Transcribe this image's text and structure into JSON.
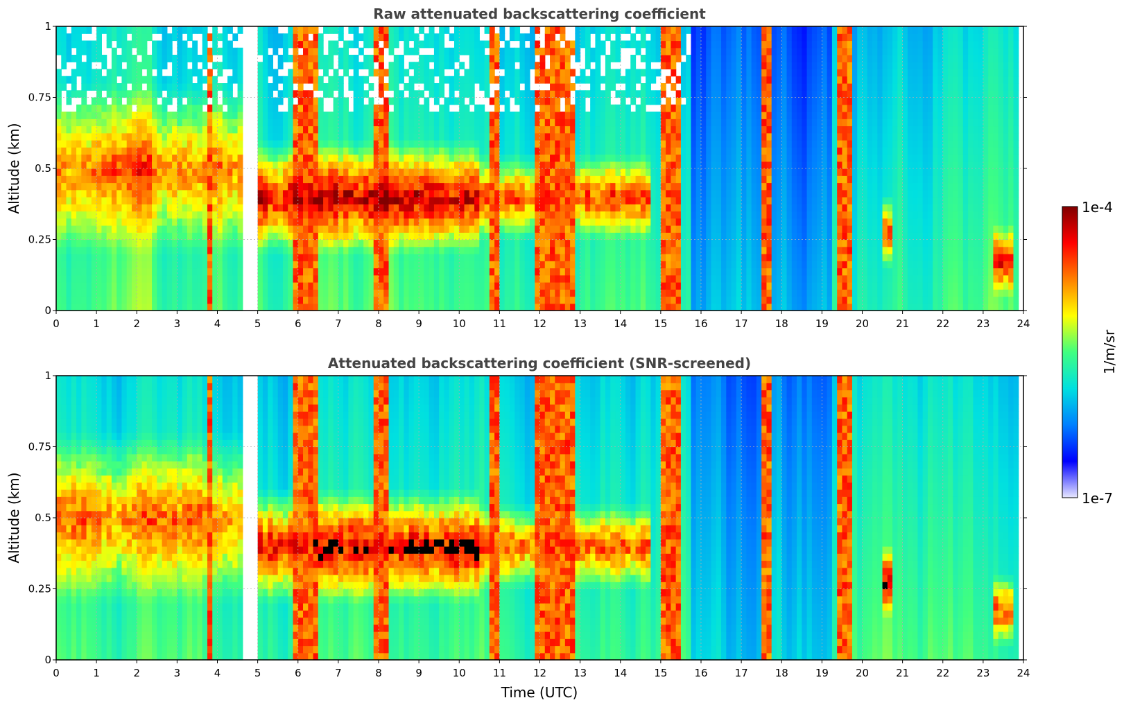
{
  "chart_data": [
    {
      "type": "heatmap",
      "title": "Raw attenuated backscattering coefficient",
      "xlabel": "",
      "ylabel": "Altitude (km)",
      "xlim": [
        0,
        24
      ],
      "ylim": [
        0,
        1
      ],
      "xticks": [
        "0",
        "1",
        "2",
        "3",
        "4",
        "5",
        "6",
        "7",
        "8",
        "9",
        "10",
        "11",
        "12",
        "13",
        "14",
        "15",
        "16",
        "17",
        "18",
        "19",
        "20",
        "21",
        "22",
        "23",
        "24"
      ],
      "yticks": [
        "0",
        "0.25",
        "0.5",
        "0.75",
        "1"
      ],
      "grid": true,
      "screened": false,
      "data_gaps_utc": [
        [
          4.6,
          5.0
        ]
      ]
    },
    {
      "type": "heatmap",
      "title": "Attenuated backscattering coefficient (SNR-screened)",
      "xlabel": "Time (UTC)",
      "ylabel": "Altitude (km)",
      "xlim": [
        0,
        24
      ],
      "ylim": [
        0,
        1
      ],
      "xticks": [
        "0",
        "1",
        "2",
        "3",
        "4",
        "5",
        "6",
        "7",
        "8",
        "9",
        "10",
        "11",
        "12",
        "13",
        "14",
        "15",
        "16",
        "17",
        "18",
        "19",
        "20",
        "21",
        "22",
        "23",
        "24"
      ],
      "yticks": [
        "0",
        "0.25",
        "0.5",
        "0.75",
        "1"
      ],
      "grid": true,
      "screened": true,
      "data_gaps_utc": [
        [
          4.6,
          5.0
        ]
      ]
    }
  ],
  "colorbar": {
    "label": "1/m/sr",
    "max_label": "1e-4",
    "min_label": "1e-7",
    "colormap": [
      "#e8e8ff",
      "#0000ff",
      "#0080ff",
      "#00e0e0",
      "#40ff80",
      "#ffff00",
      "#ff8000",
      "#ff0000",
      "#800000"
    ]
  },
  "field_model": {
    "background_log10": -5.9,
    "cloud_features": [
      {
        "t0": 0.0,
        "t1": 4.6,
        "h0": 0.25,
        "h1": 0.75,
        "strength": 0.7
      },
      {
        "t0": 5.0,
        "t1": 10.5,
        "h0": 0.25,
        "h1": 0.55,
        "strength": 1.0
      },
      {
        "t0": 10.5,
        "t1": 14.8,
        "h0": 0.3,
        "h1": 0.5,
        "strength": 0.8
      },
      {
        "t0": 20.5,
        "t1": 20.8,
        "h0": 0.2,
        "h1": 0.35,
        "strength": 0.9
      },
      {
        "t0": 23.2,
        "t1": 23.8,
        "h0": 0.1,
        "h1": 0.25,
        "strength": 0.8
      }
    ],
    "precip_columns_utc": [
      [
        3.7,
        3.85
      ],
      [
        5.85,
        6.2
      ],
      [
        6.3,
        6.45
      ],
      [
        7.9,
        8.3
      ],
      [
        10.8,
        11.0
      ],
      [
        11.9,
        12.9
      ],
      [
        15.0,
        15.5
      ],
      [
        17.5,
        17.75
      ],
      [
        19.35,
        19.75
      ]
    ]
  }
}
